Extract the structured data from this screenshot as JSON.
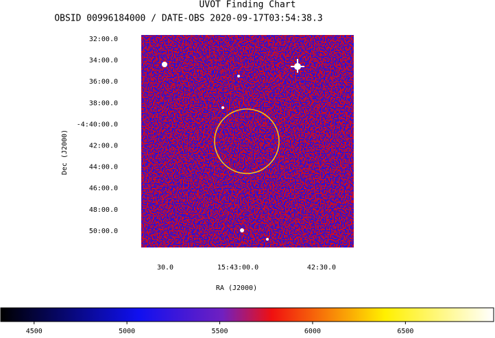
{
  "chart_data": {
    "type": "image",
    "title": "UVOT Finding Chart",
    "subtitle": "OBSID 00996184000 / DATE-OBS 2020-09-17T03:54:38.3",
    "x_label": "RA (J2000)",
    "y_label": "Dec (J2000)",
    "yticks": [
      "32:00.0",
      "34:00.0",
      "36:00.0",
      "38:00.0",
      "-4:40:00.0",
      "42:00.0",
      "44:00.0",
      "46:00.0",
      "48:00.0",
      "50:00.0"
    ],
    "xticks": [
      "30.0",
      "15:43:00.0",
      "42:30.0"
    ],
    "colorbar": {
      "lim": [
        4320,
        6975
      ],
      "ticks": [
        4500,
        5000,
        5500,
        6000,
        6500
      ]
    }
  }
}
